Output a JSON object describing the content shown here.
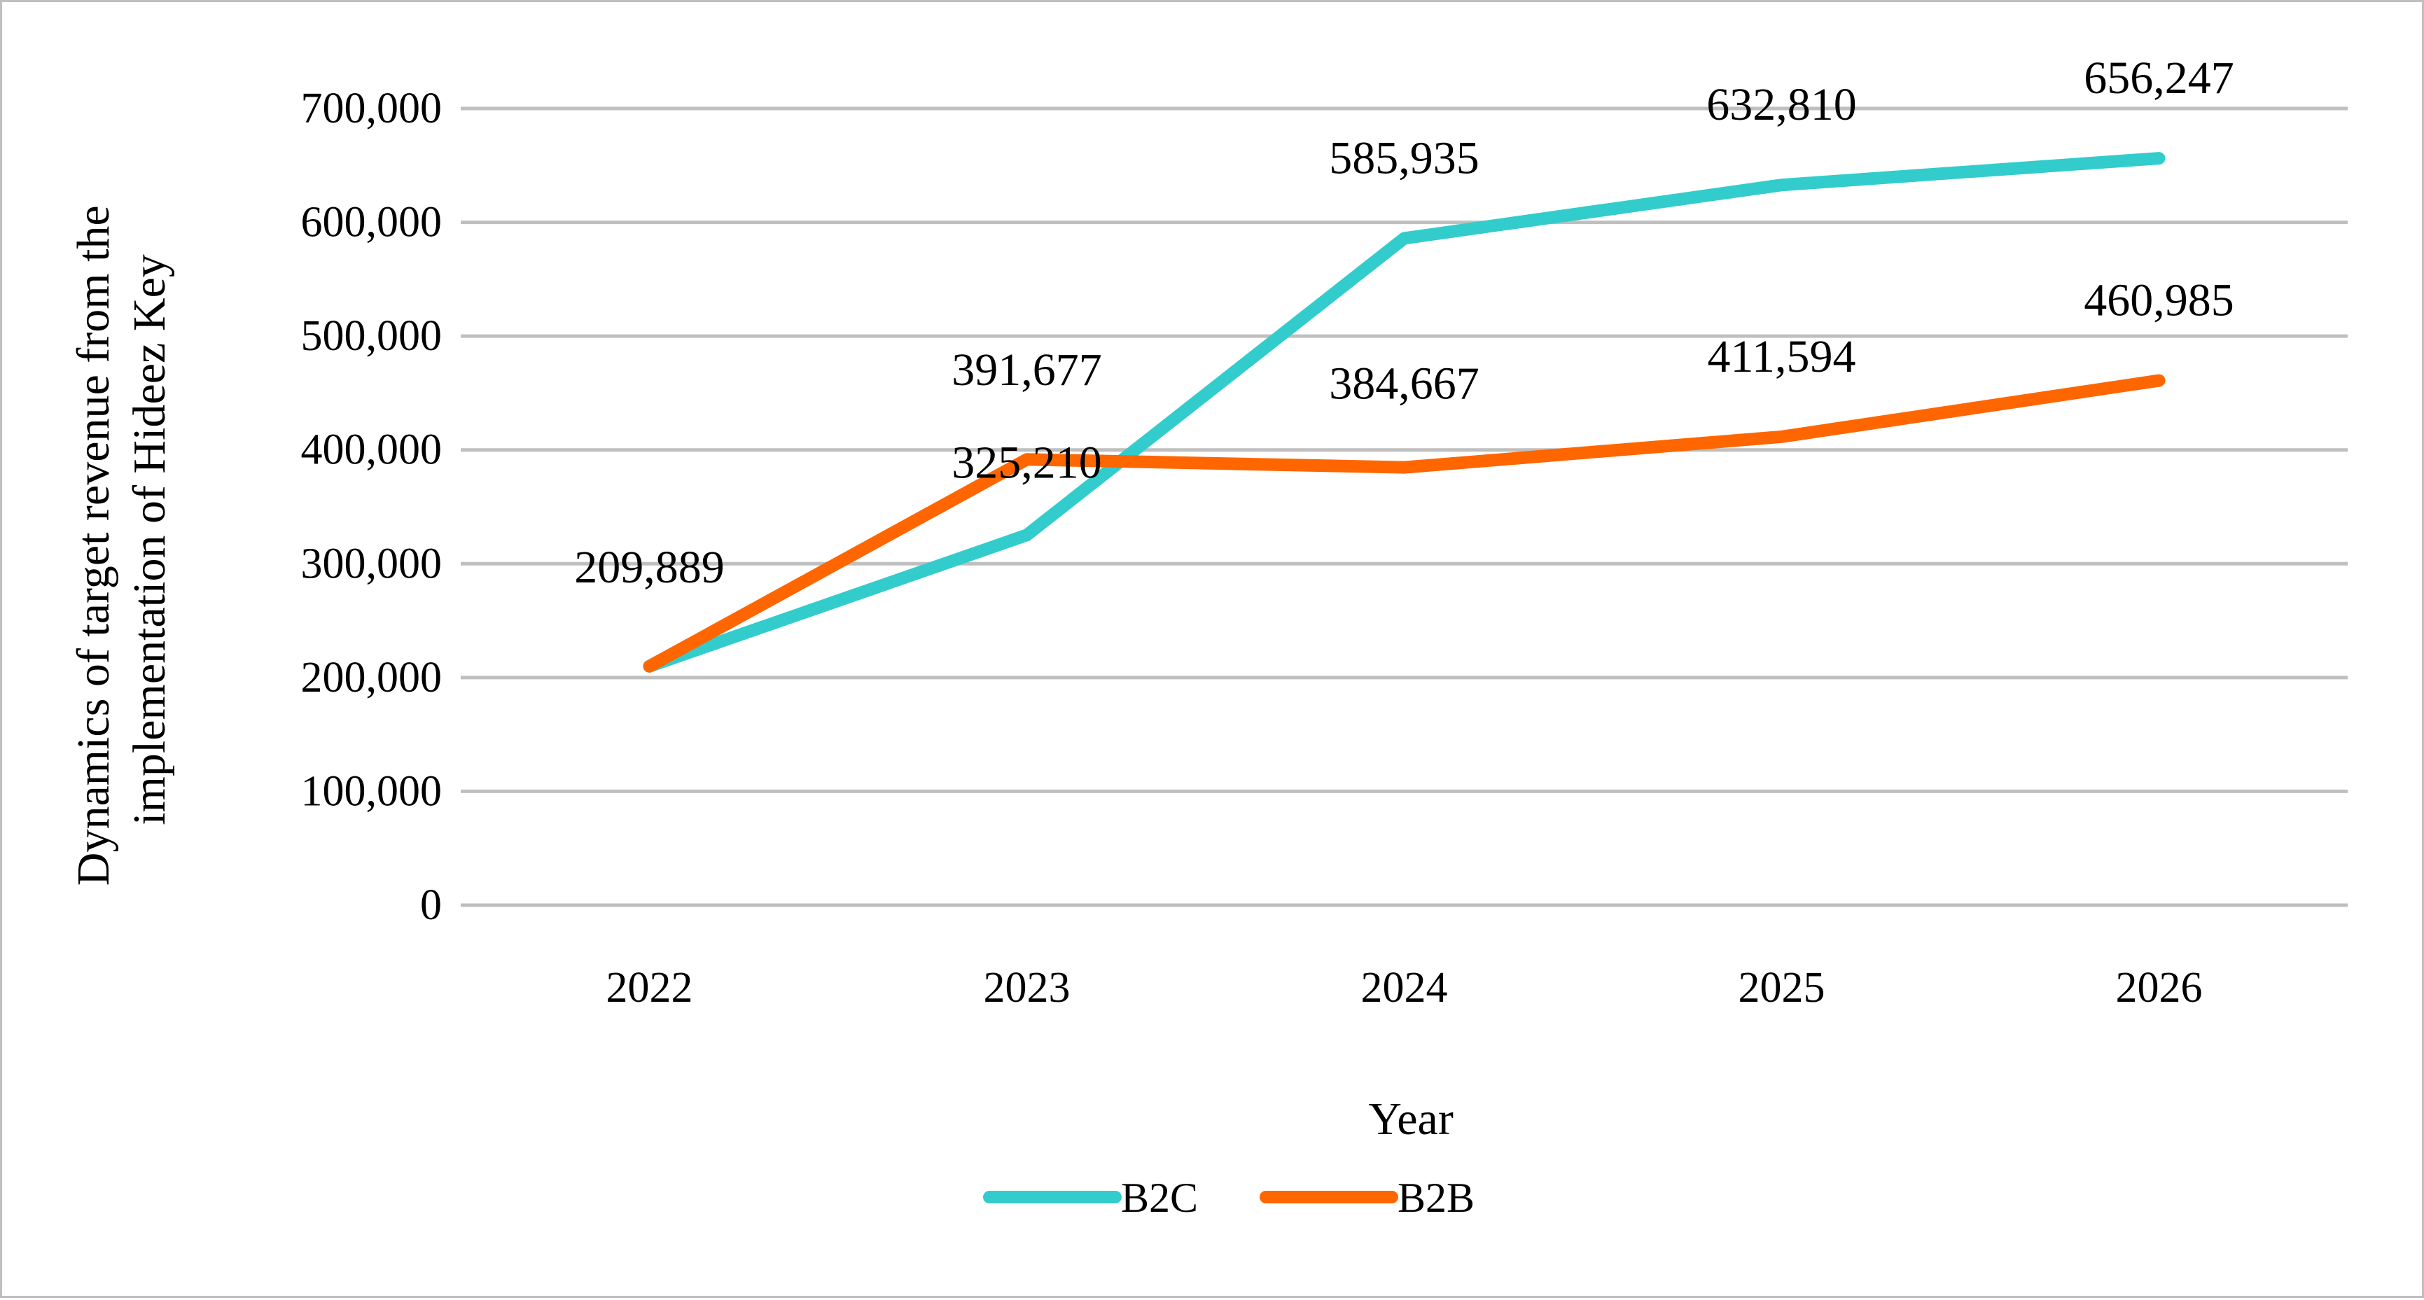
{
  "chart_data": {
    "type": "line",
    "title": "",
    "xlabel": "Year",
    "ylabel": "Dynamics of target revenue from the implementation of Hideez Key",
    "ylabel_lines": [
      "Dynamics of target revenue from the",
      "implementation of Hideez Key"
    ],
    "categories": [
      "2022",
      "2023",
      "2024",
      "2025",
      "2026"
    ],
    "ylim": [
      0,
      700000
    ],
    "yticks": [
      0,
      100000,
      200000,
      300000,
      400000,
      500000,
      600000,
      700000
    ],
    "ytick_labels": [
      "0",
      "100,000",
      "200,000",
      "300,000",
      "400,000",
      "500,000",
      "600,000",
      "700,000"
    ],
    "grid": true,
    "legend_position": "bottom",
    "series": [
      {
        "name": "B2C",
        "color": "#33CCCC",
        "values": [
          209889,
          325210,
          585935,
          632810,
          656247
        ],
        "labels": [
          "209,889",
          "325,210",
          "585,935",
          "632,810",
          "656,247"
        ]
      },
      {
        "name": "B2B",
        "color": "#FF6600",
        "values": [
          209889,
          391677,
          384667,
          411594,
          460985
        ],
        "labels": [
          "",
          "391,677",
          "384,667",
          "411,594",
          "460,985"
        ]
      }
    ]
  },
  "colors": {
    "grid": "#bfbfbf",
    "frame": "#bfbfbf",
    "text": "#000000"
  }
}
